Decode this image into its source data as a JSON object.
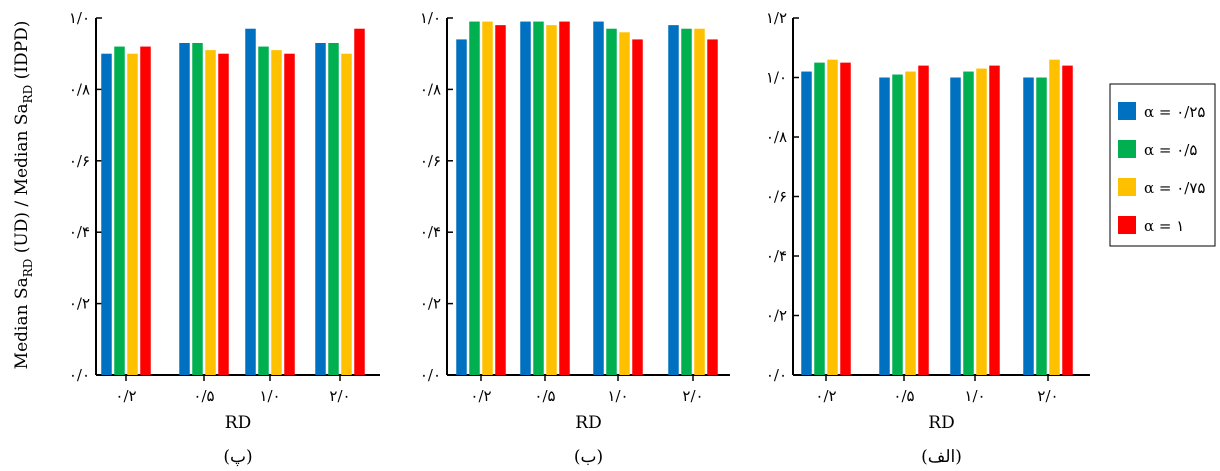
{
  "figure": {
    "ylabel_parts": [
      "Median Sa",
      "RD",
      " (UD) / Median Sa",
      "RD",
      " (IDPD)"
    ],
    "xlabel": "RD",
    "legend": [
      {
        "label": "α = ۰/۲۵",
        "color": "#0070c0"
      },
      {
        "label": "α = ۰/۵",
        "color": "#00b050"
      },
      {
        "label": "α = ۰/۷۵",
        "color": "#ffc000"
      },
      {
        "label": "α = ۱",
        "color": "#ff0000"
      }
    ]
  },
  "chart_data": [
    {
      "type": "bar",
      "panel_label": "(پ)",
      "categories": [
        "۰/۲",
        "۰/۵",
        "۱/۰",
        "۲/۰"
      ],
      "xlabel": "RD",
      "ylim": [
        0,
        1.0
      ],
      "yticks": [
        0,
        0.2,
        0.4,
        0.6,
        0.8,
        1.0
      ],
      "ytick_labels": [
        "۰/۰",
        "۰/۲",
        "۰/۴",
        "۰/۶",
        "۰/۸",
        "۱/۰"
      ],
      "series": [
        {
          "name": "α = ۰/۲۵",
          "color": "#0070c0",
          "values": [
            0.9,
            0.93,
            0.97,
            0.93
          ]
        },
        {
          "name": "α = ۰/۵",
          "color": "#00b050",
          "values": [
            0.92,
            0.93,
            0.92,
            0.93
          ]
        },
        {
          "name": "α = ۰/۷۵",
          "color": "#ffc000",
          "values": [
            0.9,
            0.91,
            0.91,
            0.9
          ]
        },
        {
          "name": "α = ۱",
          "color": "#ff0000",
          "values": [
            0.92,
            0.9,
            0.9,
            0.97
          ]
        }
      ]
    },
    {
      "type": "bar",
      "panel_label": "(ب)",
      "categories": [
        "۰/۲",
        "۰/۵",
        "۱/۰",
        "۲/۰"
      ],
      "xlabel": "RD",
      "ylim": [
        0,
        1.0
      ],
      "yticks": [
        0,
        0.2,
        0.4,
        0.6,
        0.8,
        1.0
      ],
      "ytick_labels": [
        "۰/۰",
        "۰/۲",
        "۰/۴",
        "۰/۶",
        "۰/۸",
        "۱/۰"
      ],
      "series": [
        {
          "name": "α = ۰/۲۵",
          "color": "#0070c0",
          "values": [
            0.94,
            0.99,
            0.99,
            0.98
          ]
        },
        {
          "name": "α = ۰/۵",
          "color": "#00b050",
          "values": [
            0.99,
            0.99,
            0.97,
            0.97
          ]
        },
        {
          "name": "α = ۰/۷۵",
          "color": "#ffc000",
          "values": [
            0.99,
            0.98,
            0.96,
            0.97
          ]
        },
        {
          "name": "α = ۱",
          "color": "#ff0000",
          "values": [
            0.98,
            0.99,
            0.94,
            0.94
          ]
        }
      ]
    },
    {
      "type": "bar",
      "panel_label": "(الف)",
      "categories": [
        "۰/۲",
        "۰/۵",
        "۱/۰",
        "۲/۰"
      ],
      "xlabel": "RD",
      "ylim": [
        0,
        1.2
      ],
      "yticks": [
        0,
        0.2,
        0.4,
        0.6,
        0.8,
        1.0,
        1.2
      ],
      "ytick_labels": [
        "۰/۰",
        "۰/۲",
        "۰/۴",
        "۰/۶",
        "۰/۸",
        "۱/۰",
        "۱/۲"
      ],
      "series": [
        {
          "name": "α = ۰/۲۵",
          "color": "#0070c0",
          "values": [
            1.02,
            1.0,
            1.0,
            1.0
          ]
        },
        {
          "name": "α = ۰/۵",
          "color": "#00b050",
          "values": [
            1.05,
            1.01,
            1.02,
            1.0
          ]
        },
        {
          "name": "α = ۰/۷۵",
          "color": "#ffc000",
          "values": [
            1.06,
            1.02,
            1.03,
            1.06
          ]
        },
        {
          "name": "α = ۱",
          "color": "#ff0000",
          "values": [
            1.05,
            1.04,
            1.04,
            1.04
          ]
        }
      ]
    }
  ]
}
